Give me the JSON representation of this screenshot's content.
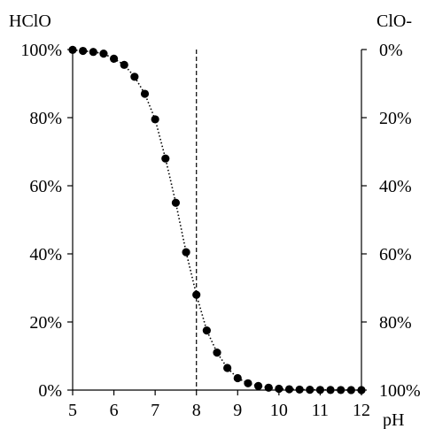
{
  "chart_data": {
    "type": "scatter",
    "title": "",
    "xlabel": "pH",
    "ylabel_left": "HClO",
    "ylabel_right": "ClO-",
    "xlim": [
      5,
      12
    ],
    "ylim": [
      0,
      100
    ],
    "xticks": [
      5,
      6,
      7,
      8,
      9,
      10,
      11,
      12
    ],
    "yticks_left": [
      "0%",
      "20%",
      "40%",
      "60%",
      "80%",
      "100%"
    ],
    "yticks_right": [
      "100%",
      "80%",
      "60%",
      "40%",
      "20%",
      "0%"
    ],
    "reference_line_x": 8,
    "grid": false,
    "connector": "dotted",
    "series": [
      {
        "x": [
          5.0,
          5.25,
          5.5,
          5.75,
          6.0,
          6.25,
          6.5,
          6.75,
          7.0,
          7.25,
          7.5,
          7.75,
          8.0,
          8.25,
          8.5,
          8.75,
          9.0,
          9.25,
          9.5,
          9.75,
          10.0,
          10.25,
          10.5,
          10.75,
          11.0,
          11.25,
          11.5,
          11.75,
          12.0
        ],
        "y": [
          99.9,
          99.6,
          99.3,
          98.8,
          97.3,
          95.5,
          92.0,
          87.0,
          79.5,
          68.0,
          55.0,
          40.5,
          28.0,
          17.5,
          11.0,
          6.5,
          3.5,
          2.0,
          1.2,
          0.7,
          0.4,
          0.25,
          0.15,
          0.1,
          0.05,
          0.03,
          0.02,
          0.01,
          0.0
        ]
      }
    ]
  }
}
